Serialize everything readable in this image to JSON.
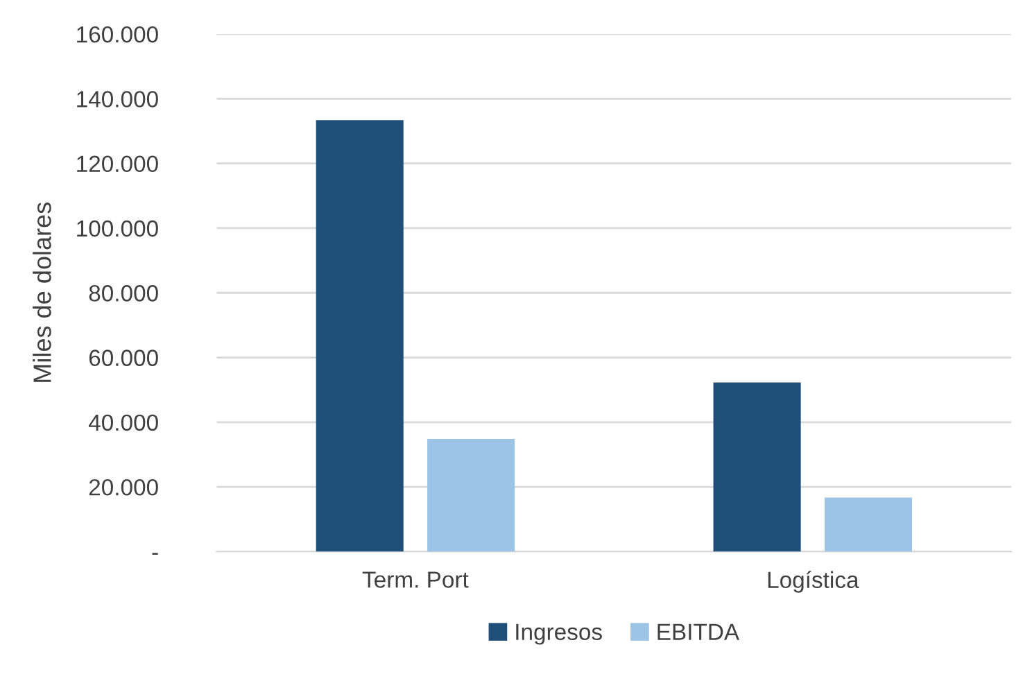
{
  "chart_data": {
    "type": "bar",
    "ylabel": "Miles de dolares",
    "categories": [
      "Term. Port",
      "Logística"
    ],
    "series": [
      {
        "name": "Ingresos",
        "color": "#1f4e79",
        "values": [
          133400,
          52300
        ]
      },
      {
        "name": "EBITDA",
        "color": "#9dc3e6",
        "values": [
          34800,
          16700
        ]
      }
    ],
    "ylim": [
      0,
      160000
    ],
    "yticks": [
      {
        "value": 0,
        "label": "-"
      },
      {
        "value": 20000,
        "label": "20.000"
      },
      {
        "value": 40000,
        "label": "40.000"
      },
      {
        "value": 60000,
        "label": "60.000"
      },
      {
        "value": 80000,
        "label": "80.000"
      },
      {
        "value": 100000,
        "label": "100.000"
      },
      {
        "value": 120000,
        "label": "120.000"
      },
      {
        "value": 140000,
        "label": "140.000"
      },
      {
        "value": 160000,
        "label": "160.000"
      }
    ],
    "grid": "y",
    "legend": "bottom"
  }
}
